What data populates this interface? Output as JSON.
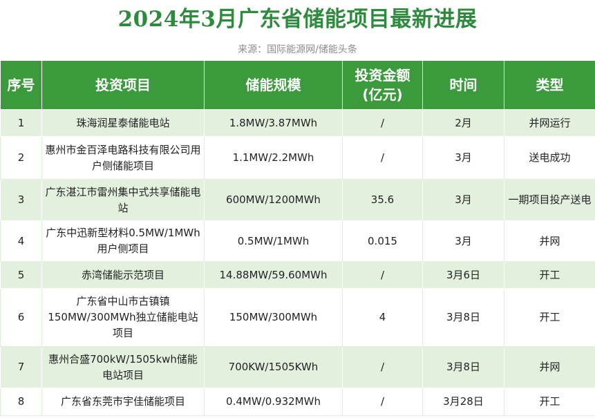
{
  "title": "2024年3月广东省储能项目最新进展",
  "source": "来源：国际能源网/储能头条",
  "table": {
    "headers": [
      "序号",
      "投资项目",
      "储能规模",
      "投资金额\n(亿元)",
      "时间",
      "类型"
    ],
    "rows": [
      {
        "no": "1",
        "project": "珠海润星泰储能电站",
        "scale": "1.8MW/3.87MWh",
        "amount": "/",
        "time": "2月",
        "type": "并网运行"
      },
      {
        "no": "2",
        "project": "惠州市金百泽电路科技有限公司用户侧储能项目",
        "scale": "1.1MW/2.2MWh",
        "amount": "/",
        "time": "3月",
        "type": "送电成功"
      },
      {
        "no": "3",
        "project": "广东湛江市雷州集中式共享储能电站",
        "scale": "600MW/1200MWh",
        "amount": "35.6",
        "time": "3月",
        "type": "一期项目投产送电"
      },
      {
        "no": "4",
        "project": "广东中迅新型材料0.5MW/1MWh用户侧项目",
        "scale": "0.5MW/1MWh",
        "amount": "0.015",
        "time": "3月",
        "type": "并网"
      },
      {
        "no": "5",
        "project": "赤湾储能示范项目",
        "scale": "14.88MW/59.60MWh",
        "amount": "/",
        "time": "3月6日",
        "type": "开工"
      },
      {
        "no": "6",
        "project": "广东省中山市古镇镇150MW/300MWh独立储能电站项目",
        "scale": "150MW/300MWh",
        "amount": "4",
        "time": "3月8日",
        "type": "开工"
      },
      {
        "no": "7",
        "project": "惠州合盛700kW/1505kwh储能电站项目",
        "scale": "700KW/1505KWh",
        "amount": "/",
        "time": "3月8日",
        "type": "并网"
      },
      {
        "no": "8",
        "project": "广东省东莞市宇佳储能项目",
        "scale": "0.4MW/0.932MWh",
        "amount": "/",
        "time": "3月28日",
        "type": "开工"
      }
    ]
  },
  "colors": {
    "title": "#2e8b3e",
    "header_bg": "#3a9a3c",
    "odd_row_bg": "#e3f0dd",
    "even_row_bg": "#ffffff",
    "source_text": "#8c8c8c"
  }
}
